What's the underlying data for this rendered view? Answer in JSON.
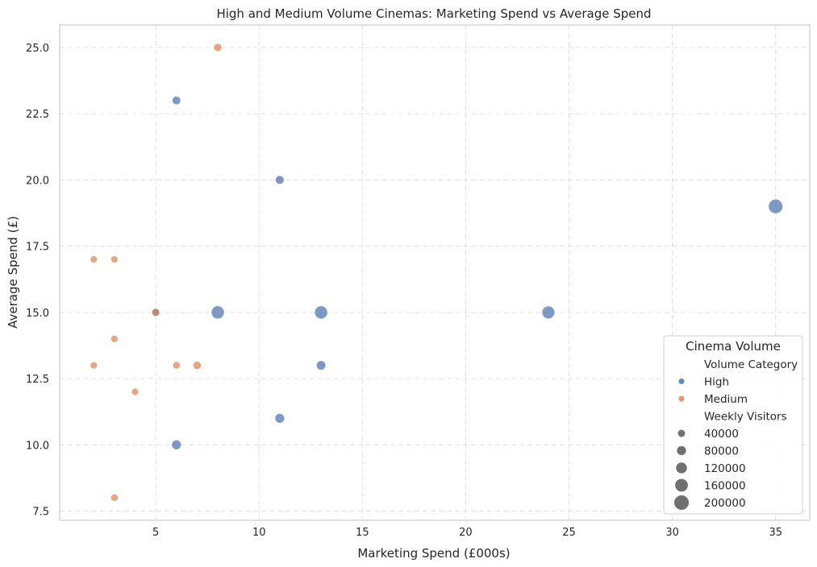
{
  "chart_data": {
    "type": "scatter",
    "title": "High and Medium Volume Cinemas: Marketing Spend vs Average Spend",
    "xlabel": "Marketing Spend (£000s)",
    "ylabel": "Average Spend (£)",
    "xlim": [
      0.35,
      36.65
    ],
    "ylim": [
      7.15,
      25.85
    ],
    "xticks": [
      5,
      10,
      15,
      20,
      25,
      30,
      35
    ],
    "yticks": [
      7.5,
      10.0,
      12.5,
      15.0,
      17.5,
      20.0,
      22.5,
      25.0
    ],
    "ytick_labels": [
      "7.5",
      "10.0",
      "12.5",
      "15.0",
      "17.5",
      "20.0",
      "22.5",
      "25.0"
    ],
    "grid": true,
    "series": [
      {
        "name": "High",
        "color": "#4c72b0",
        "points": [
          {
            "x": 6,
            "y": 23,
            "visitors": 70000
          },
          {
            "x": 11,
            "y": 20,
            "visitors": 75000
          },
          {
            "x": 35,
            "y": 19,
            "visitors": 200000
          },
          {
            "x": 5,
            "y": 15,
            "visitors": 55000
          },
          {
            "x": 8,
            "y": 15,
            "visitors": 170000
          },
          {
            "x": 13,
            "y": 15,
            "visitors": 170000
          },
          {
            "x": 24,
            "y": 15,
            "visitors": 165000
          },
          {
            "x": 13,
            "y": 13,
            "visitors": 90000
          },
          {
            "x": 11,
            "y": 11,
            "visitors": 95000
          },
          {
            "x": 6,
            "y": 10,
            "visitors": 95000
          }
        ]
      },
      {
        "name": "Medium",
        "color": "#dd8452",
        "points": [
          {
            "x": 8,
            "y": 25,
            "visitors": 60000
          },
          {
            "x": 2,
            "y": 17,
            "visitors": 40000
          },
          {
            "x": 3,
            "y": 17,
            "visitors": 40000
          },
          {
            "x": 5,
            "y": 15,
            "visitors": 55000
          },
          {
            "x": 3,
            "y": 14,
            "visitors": 40000
          },
          {
            "x": 2,
            "y": 13,
            "visitors": 40000
          },
          {
            "x": 6,
            "y": 13,
            "visitors": 45000
          },
          {
            "x": 7,
            "y": 13,
            "visitors": 65000
          },
          {
            "x": 4,
            "y": 12,
            "visitors": 40000
          },
          {
            "x": 3,
            "y": 8,
            "visitors": 45000
          }
        ]
      }
    ],
    "legend": {
      "title": "Cinema Volume",
      "placement": "lower-right",
      "hue_header": "Volume Category",
      "hue_entries": [
        "High",
        "Medium"
      ],
      "size_header": "Weekly Visitors",
      "size_entries": [
        40000,
        80000,
        120000,
        160000,
        200000
      ],
      "size_color": "#707070"
    }
  }
}
